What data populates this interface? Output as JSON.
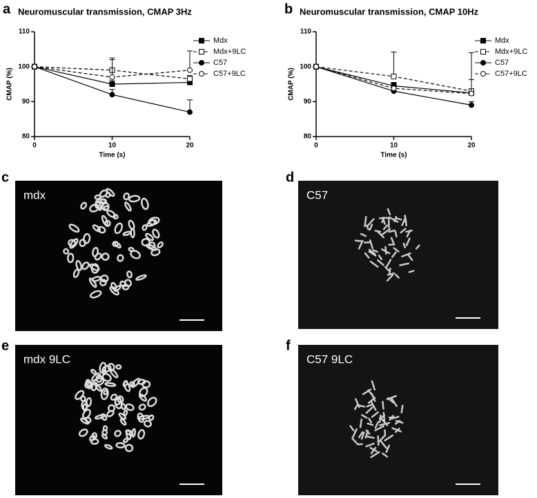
{
  "chart_data": [
    {
      "type": "line",
      "panel_label": "a",
      "title": "Neuromuscular transmission, CMAP 3Hz",
      "x_label": "Time (s)",
      "y_label": "CMAP (%)",
      "x": [
        0,
        10,
        20
      ],
      "xlim": [
        0,
        20
      ],
      "xticks": [
        0,
        10,
        20
      ],
      "ylim": [
        80,
        110
      ],
      "yticks": [
        80,
        90,
        100,
        110
      ],
      "color": "#000000",
      "series": [
        {
          "name": "Mdx",
          "marker": "square",
          "filled": true,
          "dashed": false,
          "values": [
            100,
            95,
            95.5
          ],
          "errors": [
            null,
            1,
            0.8
          ]
        },
        {
          "name": "Mdx+9LC",
          "marker": "square",
          "filled": false,
          "dashed": true,
          "values": [
            100,
            99,
            96.5
          ],
          "errors": [
            null,
            3.5,
            1
          ]
        },
        {
          "name": "C57",
          "marker": "circle",
          "filled": true,
          "dashed": false,
          "values": [
            100,
            92,
            87
          ],
          "errors": [
            null,
            1.5,
            3.5
          ]
        },
        {
          "name": "C57+9LC",
          "marker": "circle",
          "filled": false,
          "dashed": true,
          "values": [
            100,
            97,
            99
          ],
          "errors": [
            null,
            5,
            5.5
          ]
        }
      ]
    },
    {
      "type": "line",
      "panel_label": "b",
      "title": "Neuromuscular transmission, CMAP 10Hz",
      "x_label": "Time (s)",
      "y_label": "CMAP (%)",
      "x": [
        0,
        10,
        20
      ],
      "xlim": [
        0,
        20
      ],
      "xticks": [
        0,
        10,
        20
      ],
      "ylim": [
        80,
        110
      ],
      "yticks": [
        80,
        90,
        100,
        110
      ],
      "color": "#000000",
      "series": [
        {
          "name": "Mdx",
          "marker": "square",
          "filled": true,
          "dashed": false,
          "values": [
            100,
            94.5,
            92.5
          ],
          "errors": [
            null,
            1,
            1
          ]
        },
        {
          "name": "Mdx+9LC",
          "marker": "square",
          "filled": false,
          "dashed": true,
          "values": [
            100,
            97.2,
            93
          ],
          "errors": [
            null,
            7,
            11
          ]
        },
        {
          "name": "C57",
          "marker": "circle",
          "filled": true,
          "dashed": false,
          "values": [
            100,
            93,
            89
          ],
          "errors": [
            null,
            1,
            1
          ]
        },
        {
          "name": "C57+9LC",
          "marker": "circle",
          "filled": false,
          "dashed": true,
          "values": [
            100,
            93.8,
            92.3
          ],
          "errors": [
            null,
            1.5,
            4
          ]
        }
      ]
    }
  ],
  "panels": [
    {
      "panel_label": "c",
      "caption": "mdx"
    },
    {
      "panel_label": "d",
      "caption": "C57"
    },
    {
      "panel_label": "e",
      "caption": "mdx 9LC"
    },
    {
      "panel_label": "f",
      "caption": "C57 9LC"
    }
  ]
}
